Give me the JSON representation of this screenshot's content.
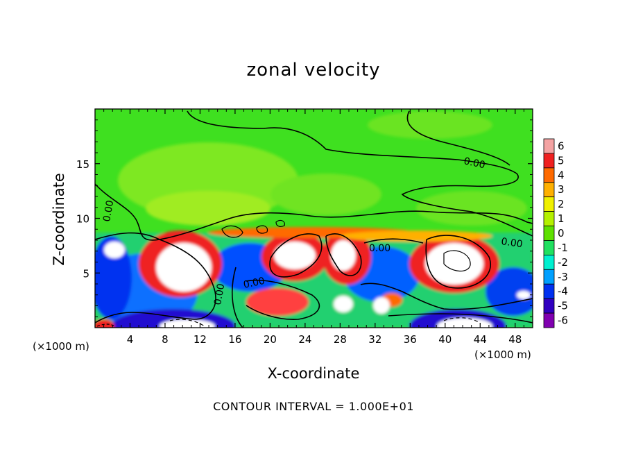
{
  "chart_data": {
    "type": "heatmap",
    "title": "zonal velocity",
    "xlabel": "X-coordinate",
    "ylabel": "Z-coordinate",
    "x_units_label": "(×1000 m)",
    "x_units_label_right": "(×1000 m)",
    "xlim": [
      0,
      50
    ],
    "ylim": [
      0,
      20
    ],
    "x_ticks": [
      4,
      8,
      12,
      16,
      20,
      24,
      28,
      32,
      36,
      40,
      44,
      48
    ],
    "y_ticks": [
      5,
      10,
      15
    ],
    "colorbar": {
      "ticks": [
        6,
        5,
        4,
        3,
        2,
        1,
        0,
        -1,
        -2,
        -3,
        -4,
        -5,
        -6
      ],
      "colors": [
        "#f4a3a3",
        "#ef2020",
        "#ff6a00",
        "#ffb000",
        "#f0f000",
        "#b4f000",
        "#5ee000",
        "#20e060",
        "#00f0d0",
        "#00a0ff",
        "#0030f0",
        "#3000c0",
        "#8000b0"
      ]
    },
    "contour_labels": [
      "0.00",
      "0.00",
      "0.00",
      "0.00",
      "0.00",
      "0.00"
    ],
    "footer": "CONTOUR INTERVAL = 1.000E+01"
  }
}
